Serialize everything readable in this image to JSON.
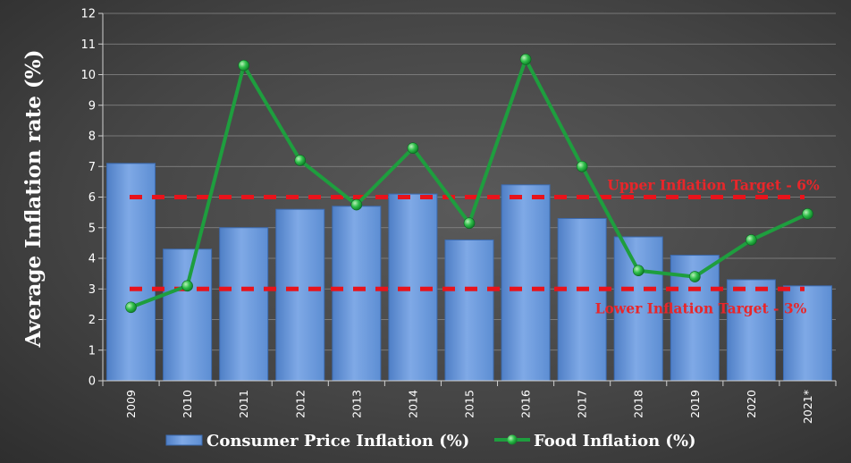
{
  "chart_data": {
    "type": "bar",
    "categories": [
      "2009",
      "2010",
      "2011",
      "2012",
      "2013",
      "2014",
      "2015",
      "2016",
      "2017",
      "2018",
      "2019",
      "2020",
      "2021*"
    ],
    "series": [
      {
        "name": "Consumer Price Inflation (%)",
        "type": "bar",
        "color": "#6f9ee0",
        "values": [
          7.1,
          4.3,
          5.0,
          5.6,
          5.7,
          6.1,
          4.6,
          6.4,
          5.3,
          4.7,
          4.1,
          3.3,
          3.1
        ]
      },
      {
        "name": "Food Inflation (%)",
        "type": "line",
        "color": "#1e9e3e",
        "values": [
          2.4,
          3.1,
          10.3,
          7.2,
          5.75,
          7.6,
          5.15,
          10.5,
          7.0,
          3.6,
          3.4,
          4.6,
          5.45
        ]
      }
    ],
    "reference_lines": [
      {
        "label": "Upper Inflation Target - 6%",
        "value": 6,
        "color": "#e8131b"
      },
      {
        "label": "Lower Inflation Target - 3%",
        "value": 3,
        "color": "#e8131b"
      }
    ],
    "ylabel": "Average Inflation rate (%)",
    "xlabel": "",
    "ylim": [
      0,
      12
    ],
    "yticks": [
      0,
      1,
      2,
      3,
      4,
      5,
      6,
      7,
      8,
      9,
      10,
      11,
      12
    ],
    "grid": true,
    "legend_position": "bottom"
  }
}
